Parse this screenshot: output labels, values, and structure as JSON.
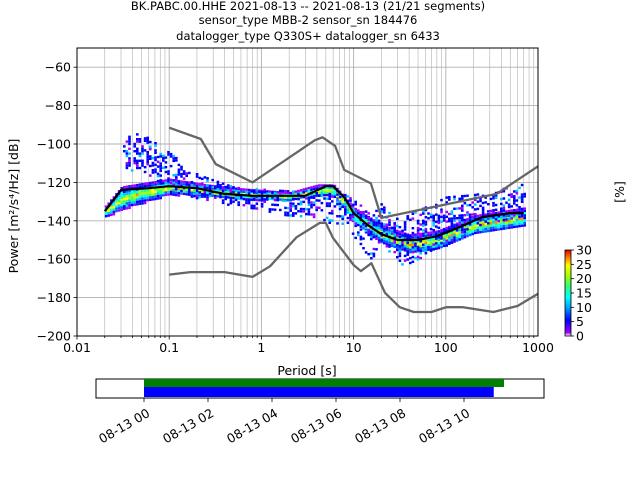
{
  "chart_data": {
    "type": "heatmap",
    "title_lines": [
      "BK.PABC.00.HHE   2021-08-13 -- 2021-08-13  (21/21 segments)",
      "sensor_type MBB-2 sensor_sn 184476",
      "datalogger_type Q330S+ datalogger_sn 6433"
    ],
    "xlabel": "Period [s]",
    "ylabel": "Power [m²/s⁴/Hz] [dB]",
    "x_scale": "log",
    "xlim": [
      0.01,
      1000
    ],
    "ylim": [
      -200,
      -50
    ],
    "x_ticks": [
      0.01,
      0.1,
      1,
      10,
      100,
      1000
    ],
    "x_tick_labels": [
      "0.01",
      "0.1",
      "1",
      "10",
      "100",
      "1000"
    ],
    "y_ticks": [
      -200,
      -180,
      -160,
      -140,
      -120,
      -100,
      -80,
      -60
    ],
    "y_tick_labels": [
      "−200",
      "−180",
      "−160",
      "−140",
      "−120",
      "−100",
      "−80",
      "−60"
    ],
    "grid": true,
    "colorbar": {
      "label": "[%]",
      "range": [
        0,
        30
      ],
      "ticks": [
        0,
        5,
        10,
        15,
        20,
        25,
        30
      ],
      "tick_labels": [
        "0",
        "5",
        "10",
        "15",
        "20",
        "25",
        "30"
      ]
    },
    "series": [
      {
        "role": "noise-model-high",
        "color": "#666666",
        "points": [
          [
            0.1,
            -91.5
          ],
          [
            0.22,
            -97.4
          ],
          [
            0.32,
            -110.5
          ],
          [
            0.8,
            -120
          ],
          [
            3.8,
            -98.0
          ],
          [
            4.6,
            -96.5
          ],
          [
            6.3,
            -101.0
          ],
          [
            7.9,
            -113.5
          ],
          [
            15.4,
            -120.5
          ],
          [
            20,
            -138.5
          ],
          [
            354.8,
            -126.0
          ],
          [
            1000,
            -111.6
          ]
        ]
      },
      {
        "role": "noise-model-low",
        "color": "#666666",
        "points": [
          [
            0.1,
            -168.0
          ],
          [
            0.17,
            -166.7
          ],
          [
            0.4,
            -166.7
          ],
          [
            0.8,
            -169.2
          ],
          [
            1.24,
            -163.7
          ],
          [
            2.4,
            -148.6
          ],
          [
            4.3,
            -141.1
          ],
          [
            5.0,
            -141.1
          ],
          [
            6.0,
            -149.0
          ],
          [
            10,
            -163.0
          ],
          [
            12,
            -166.2
          ],
          [
            15.6,
            -162.1
          ],
          [
            21.9,
            -177.5
          ],
          [
            31.6,
            -185.0
          ],
          [
            45,
            -187.5
          ],
          [
            70,
            -187.5
          ],
          [
            101,
            -185.0
          ],
          [
            154,
            -185.0
          ],
          [
            328,
            -187.5
          ],
          [
            600,
            -184.4
          ],
          [
            1000,
            -178.0
          ]
        ]
      },
      {
        "role": "mean-psd",
        "color": "#000000",
        "points": [
          [
            0.02,
            -135
          ],
          [
            0.025,
            -129
          ],
          [
            0.03,
            -124
          ],
          [
            0.04,
            -123.5
          ],
          [
            0.06,
            -123
          ],
          [
            0.1,
            -122
          ],
          [
            0.2,
            -123
          ],
          [
            0.4,
            -126
          ],
          [
            0.8,
            -127
          ],
          [
            1.5,
            -127
          ],
          [
            3,
            -127
          ],
          [
            5,
            -122
          ],
          [
            6,
            -122
          ],
          [
            8,
            -128
          ],
          [
            10,
            -136
          ],
          [
            14,
            -142
          ],
          [
            20,
            -147
          ],
          [
            30,
            -150
          ],
          [
            50,
            -150
          ],
          [
            80,
            -148
          ],
          [
            130,
            -144
          ],
          [
            250,
            -138
          ],
          [
            500,
            -136
          ],
          [
            700,
            -136
          ]
        ]
      }
    ],
    "density_band": [
      [
        0.02,
        -135,
        3
      ],
      [
        0.03,
        -128,
        6
      ],
      [
        0.1,
        -122,
        4
      ],
      [
        0.25,
        -124,
        3
      ],
      [
        0.6,
        -126,
        3
      ],
      [
        2,
        -127,
        2
      ],
      [
        4,
        -124,
        3
      ],
      [
        6,
        -124,
        3
      ],
      [
        10,
        -137,
        4
      ],
      [
        20,
        -147,
        5
      ],
      [
        40,
        -152,
        5
      ],
      [
        80,
        -150,
        5
      ],
      [
        200,
        -142,
        5
      ],
      [
        700,
        -138,
        5
      ]
    ],
    "scatter_band": [
      [
        0.03,
        -104,
        6
      ],
      [
        0.05,
        -104,
        6
      ],
      [
        0.1,
        -114,
        6
      ],
      [
        0.2,
        -122,
        4
      ],
      [
        0.5,
        -127,
        3
      ],
      [
        8,
        -134,
        5
      ],
      [
        15,
        -148,
        8
      ],
      [
        20,
        -140,
        6
      ],
      [
        30,
        -152,
        8
      ],
      [
        100,
        -140,
        8
      ],
      [
        200,
        -134,
        5
      ],
      [
        700,
        -130,
        6
      ]
    ]
  },
  "timeline": {
    "time_range_hours": [
      -1.5,
      12.5
    ],
    "tick_hours": [
      0,
      2,
      4,
      6,
      8,
      10
    ],
    "tick_labels": [
      "08-13 00",
      "08-13 02",
      "08-13 04",
      "08-13 06",
      "08-13 08",
      "08-13 10"
    ],
    "bars": [
      {
        "color": "#008000",
        "start_h": 0.0,
        "end_h": 11.25
      },
      {
        "color": "#0000ff",
        "start_h": 0.0,
        "end_h": 10.93
      }
    ]
  }
}
